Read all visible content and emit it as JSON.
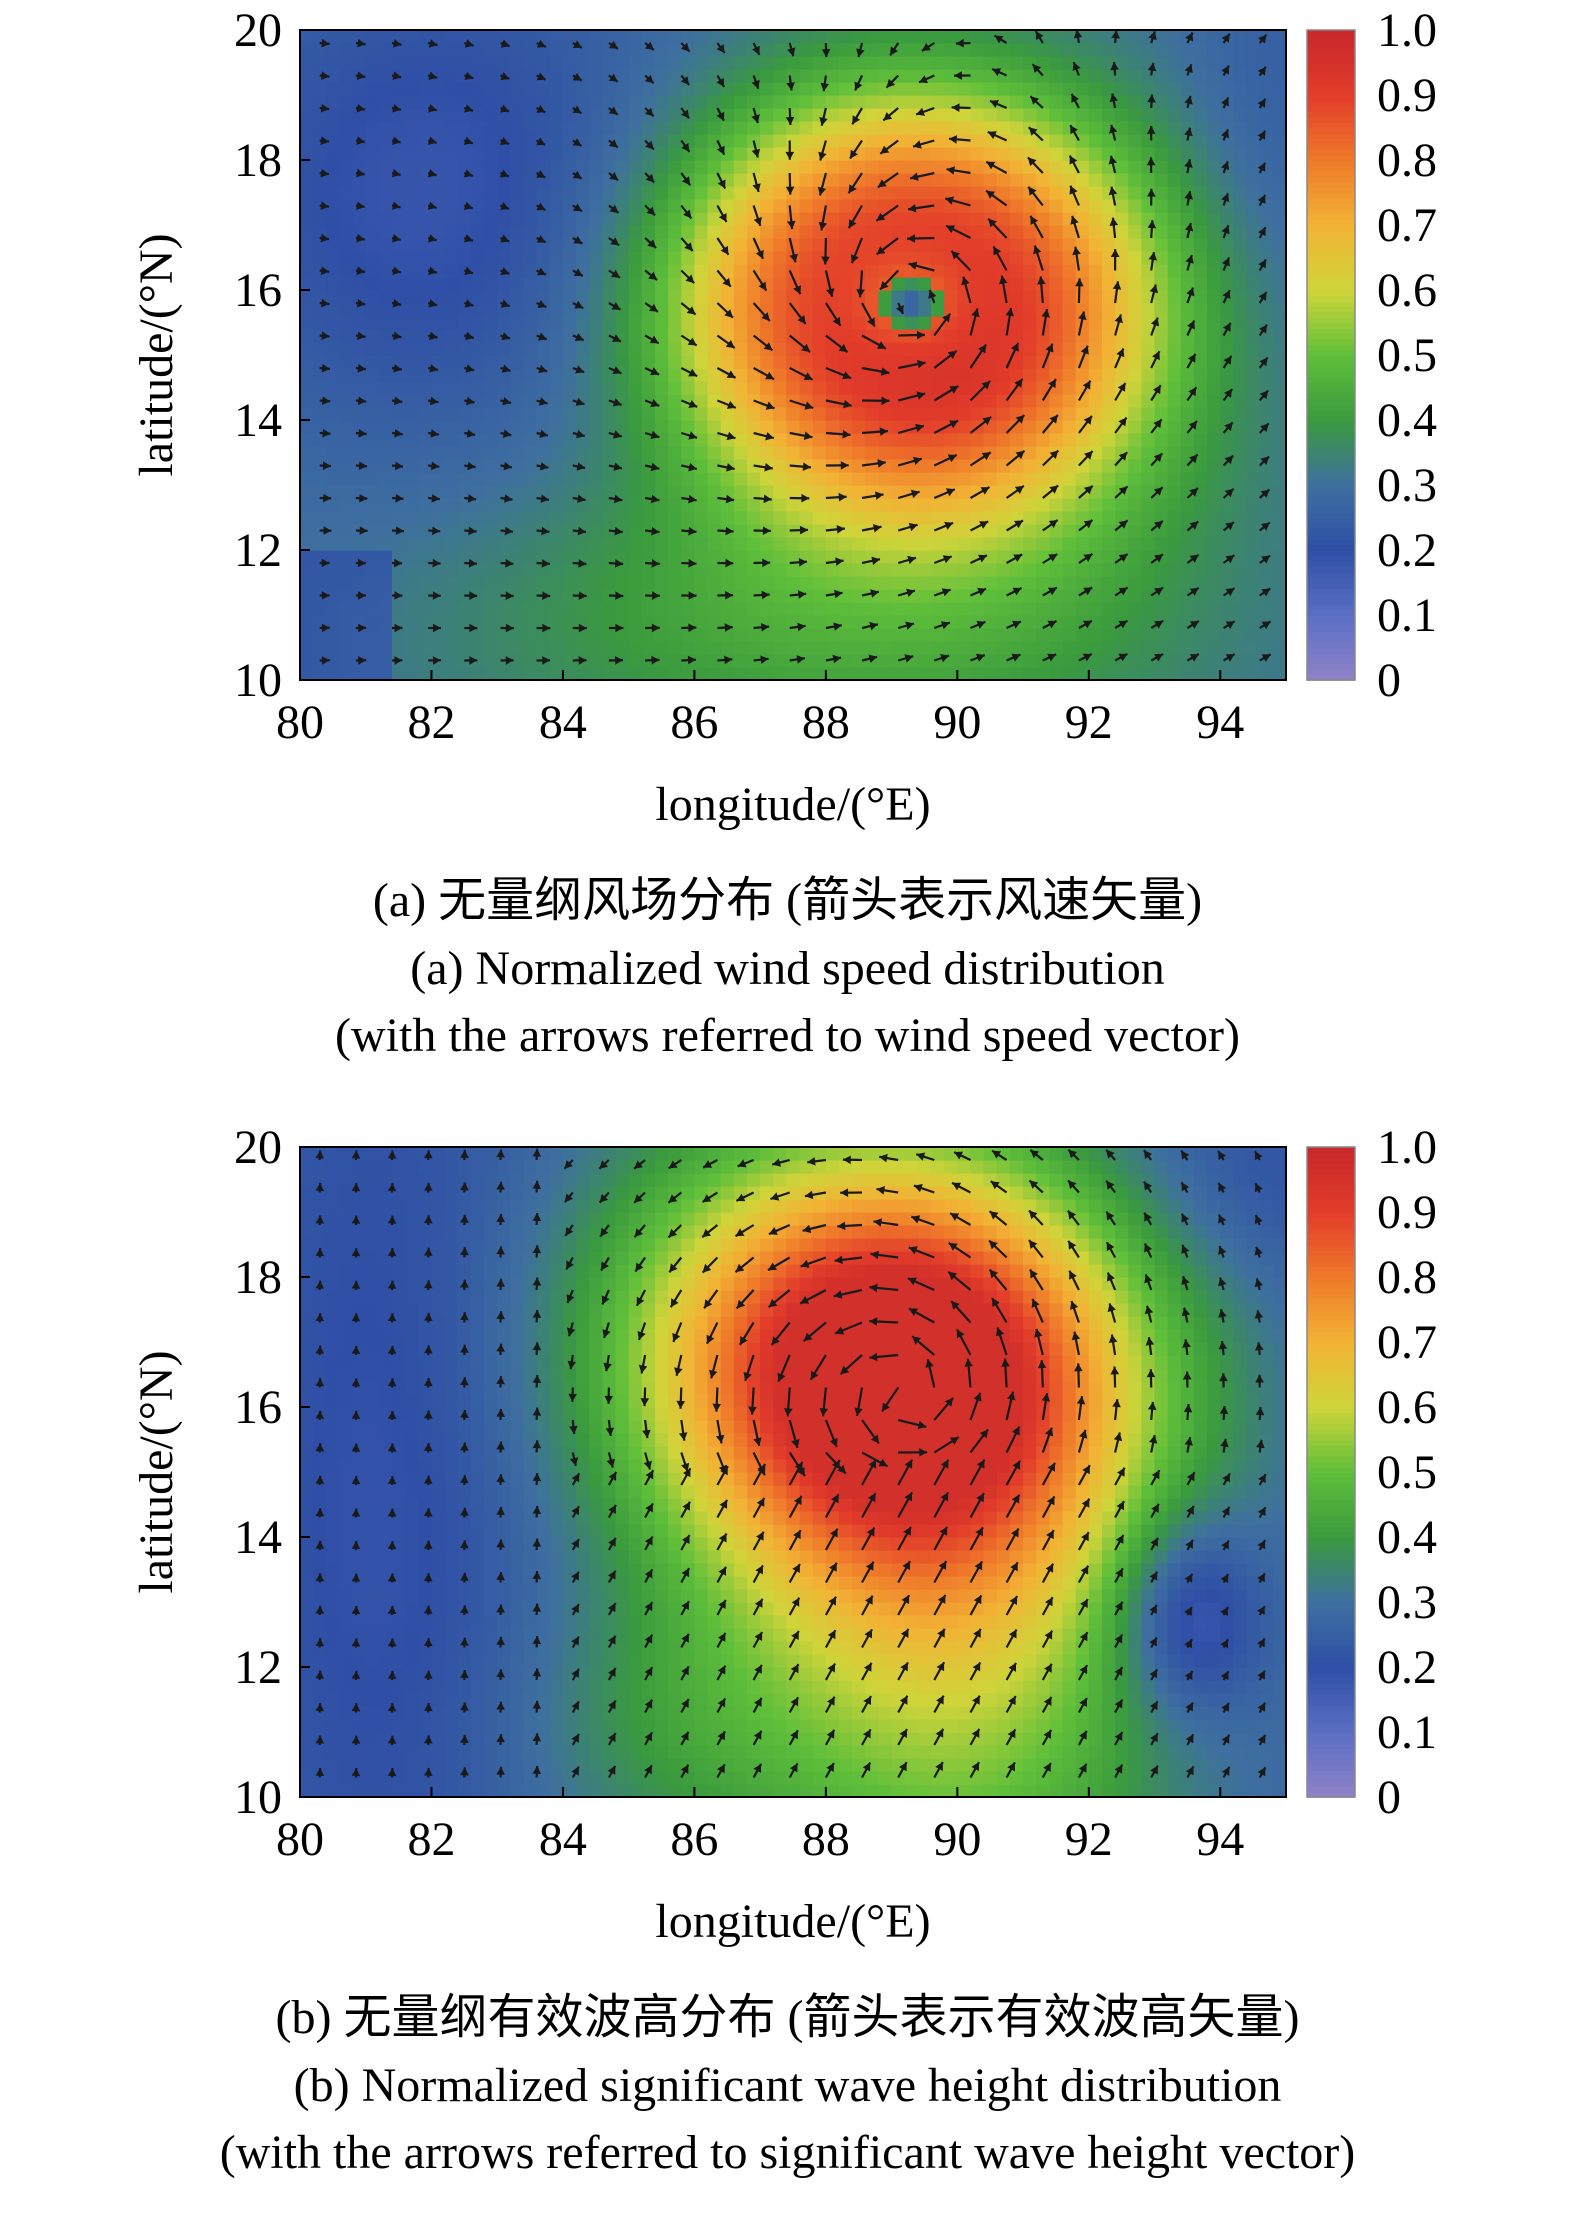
{
  "chart_data": [
    {
      "type": "heatmap",
      "field": "wind",
      "ylabel": "latitude/(°N)",
      "xlabel": "longitude/(°E)",
      "xlim": [
        80,
        95
      ],
      "ylim": [
        10,
        20
      ],
      "xticks": [
        "80",
        "82",
        "84",
        "86",
        "88",
        "90",
        "92",
        "94"
      ],
      "yticks": [
        "10",
        "12",
        "14",
        "16",
        "18",
        "20"
      ],
      "colorbar": {
        "ticks": [
          "0",
          "0.1",
          "0.2",
          "0.3",
          "0.4",
          "0.5",
          "0.6",
          "0.7",
          "0.8",
          "0.9",
          "1.0"
        ],
        "range": [
          0,
          1
        ],
        "colors": [
          "#8f82c8",
          "#5b6fc4",
          "#2f4fa6",
          "#3e6fa0",
          "#3a9a3e",
          "#5fbf3a",
          "#cfd43a",
          "#f2b335",
          "#ef7a2a",
          "#e23c2a",
          "#c8282a"
        ]
      },
      "features": {
        "storm_center": [
          89.3,
          15.8
        ],
        "eye_value": 0.2,
        "max_value": 0.9,
        "arrows": "wind speed vector"
      },
      "caption_cn": "(a) 无量纲风场分布 (箭头表示风速矢量)",
      "caption_en1": "(a) Normalized wind speed distribution",
      "caption_en2": "(with the arrows referred to wind speed vector)"
    },
    {
      "type": "heatmap",
      "field": "wave",
      "ylabel": "latitude/(°N)",
      "xlabel": "longitude/(°E)",
      "xlim": [
        80,
        95
      ],
      "ylim": [
        10,
        20
      ],
      "xticks": [
        "80",
        "82",
        "84",
        "86",
        "88",
        "90",
        "92",
        "94"
      ],
      "yticks": [
        "10",
        "12",
        "14",
        "16",
        "18",
        "20"
      ],
      "colorbar": {
        "ticks": [
          "0",
          "0.1",
          "0.2",
          "0.3",
          "0.4",
          "0.5",
          "0.6",
          "0.7",
          "0.8",
          "0.9",
          "1.0"
        ],
        "range": [
          0,
          1
        ],
        "colors": [
          "#8f82c8",
          "#5b6fc4",
          "#2f4fa6",
          "#3e6fa0",
          "#3a9a3e",
          "#5fbf3a",
          "#cfd43a",
          "#f2b335",
          "#ef7a2a",
          "#e23c2a",
          "#c8282a"
        ]
      },
      "features": {
        "peak_center": [
          89.5,
          16.8
        ],
        "max_value": 0.9,
        "arrows": "significant wave height vector"
      },
      "caption_cn": "(b) 无量纲有效波高分布 (箭头表示有效波高矢量)",
      "caption_en1": "(b) Normalized significant wave height distribution",
      "caption_en2": "(with the arrows referred to significant wave height vector)"
    }
  ]
}
